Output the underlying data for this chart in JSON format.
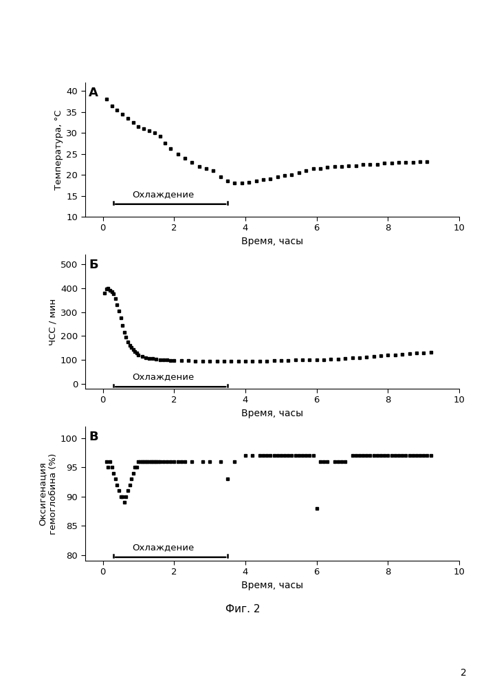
{
  "fig_label": "Фиг. 2",
  "page_number": "2",
  "background_color": "#ffffff",
  "marker": "s",
  "marker_color": "black",
  "marker_size": 3.5,
  "panel_A": {
    "label": "A",
    "ylabel": "Температура, °C",
    "xlabel": "Время, часы",
    "ylim": [
      10,
      42
    ],
    "yticks": [
      10,
      15,
      20,
      25,
      30,
      35,
      40
    ],
    "xlim": [
      -0.5,
      10
    ],
    "xticks": [
      0,
      2,
      4,
      6,
      8,
      10
    ],
    "cooling_label": "Охлаждение",
    "cooling_x_start": 0.3,
    "cooling_x_end": 3.5,
    "cooling_y": 13.0,
    "x": [
      0.1,
      0.25,
      0.4,
      0.55,
      0.7,
      0.85,
      1.0,
      1.15,
      1.3,
      1.45,
      1.6,
      1.75,
      1.9,
      2.1,
      2.3,
      2.5,
      2.7,
      2.9,
      3.1,
      3.3,
      3.5,
      3.7,
      3.9,
      4.1,
      4.3,
      4.5,
      4.7,
      4.9,
      5.1,
      5.3,
      5.5,
      5.7,
      5.9,
      6.1,
      6.3,
      6.5,
      6.7,
      6.9,
      7.1,
      7.3,
      7.5,
      7.7,
      7.9,
      8.1,
      8.3,
      8.5,
      8.7,
      8.9,
      9.1
    ],
    "y": [
      38.0,
      36.5,
      35.5,
      34.5,
      33.5,
      32.5,
      31.5,
      31.0,
      30.5,
      30.0,
      29.2,
      27.5,
      26.2,
      25.0,
      24.0,
      23.0,
      22.0,
      21.5,
      21.0,
      19.5,
      18.5,
      18.0,
      18.0,
      18.2,
      18.5,
      18.8,
      19.0,
      19.5,
      19.8,
      20.0,
      20.5,
      21.0,
      21.5,
      21.5,
      21.8,
      22.0,
      22.0,
      22.2,
      22.2,
      22.5,
      22.5,
      22.5,
      22.8,
      22.8,
      23.0,
      23.0,
      23.0,
      23.2,
      23.2
    ]
  },
  "panel_B": {
    "label": "Б",
    "ylabel": "ЧСС / мин",
    "xlabel": "Время, часы",
    "ylim": [
      -20,
      540
    ],
    "yticks": [
      0,
      100,
      200,
      300,
      400,
      500
    ],
    "xlim": [
      -0.5,
      10
    ],
    "xticks": [
      0,
      2,
      4,
      6,
      8,
      10
    ],
    "cooling_label": "Охлаждение",
    "cooling_x_start": 0.3,
    "cooling_x_end": 3.5,
    "cooling_y": -12,
    "x": [
      0.05,
      0.1,
      0.15,
      0.2,
      0.25,
      0.3,
      0.35,
      0.4,
      0.45,
      0.5,
      0.55,
      0.6,
      0.65,
      0.7,
      0.75,
      0.8,
      0.85,
      0.9,
      0.95,
      1.0,
      1.1,
      1.2,
      1.3,
      1.4,
      1.5,
      1.6,
      1.7,
      1.8,
      1.9,
      2.0,
      2.2,
      2.4,
      2.6,
      2.8,
      3.0,
      3.2,
      3.4,
      3.6,
      3.8,
      4.0,
      4.2,
      4.4,
      4.6,
      4.8,
      5.0,
      5.2,
      5.4,
      5.6,
      5.8,
      6.0,
      6.2,
      6.4,
      6.6,
      6.8,
      7.0,
      7.2,
      7.4,
      7.6,
      7.8,
      8.0,
      8.2,
      8.4,
      8.6,
      8.8,
      9.0,
      9.2
    ],
    "y": [
      380,
      395,
      400,
      390,
      385,
      375,
      355,
      330,
      305,
      275,
      245,
      215,
      195,
      175,
      162,
      152,
      143,
      135,
      128,
      122,
      115,
      110,
      107,
      105,
      103,
      102,
      100,
      100,
      99,
      98,
      97,
      97,
      96,
      96,
      95,
      95,
      95,
      95,
      95,
      95,
      95,
      95,
      96,
      97,
      98,
      99,
      100,
      100,
      100,
      101,
      102,
      103,
      104,
      106,
      108,
      110,
      112,
      115,
      118,
      120,
      122,
      124,
      126,
      128,
      130,
      132
    ]
  },
  "panel_C": {
    "label": "В",
    "ylabel": "Оксигенация\nгемоглобина (%)",
    "xlabel": "Время, часы",
    "ylim": [
      79,
      102
    ],
    "yticks": [
      80,
      85,
      90,
      95,
      100
    ],
    "xlim": [
      -0.5,
      10
    ],
    "xticks": [
      0,
      2,
      4,
      6,
      8,
      10
    ],
    "cooling_label": "Охлаждение",
    "cooling_x_start": 0.3,
    "cooling_x_end": 3.5,
    "cooling_y": 79.6,
    "x": [
      0.1,
      0.15,
      0.2,
      0.25,
      0.3,
      0.35,
      0.4,
      0.45,
      0.5,
      0.55,
      0.6,
      0.65,
      0.7,
      0.75,
      0.8,
      0.85,
      0.9,
      0.95,
      1.0,
      1.05,
      1.1,
      1.15,
      1.2,
      1.25,
      1.3,
      1.35,
      1.4,
      1.45,
      1.5,
      1.55,
      1.6,
      1.7,
      1.8,
      1.9,
      2.0,
      2.1,
      2.2,
      2.3,
      2.5,
      2.8,
      3.0,
      3.3,
      3.5,
      3.7,
      4.0,
      4.2,
      4.4,
      4.5,
      4.6,
      4.7,
      4.8,
      4.9,
      5.0,
      5.1,
      5.2,
      5.3,
      5.4,
      5.5,
      5.6,
      5.7,
      5.8,
      5.9,
      6.0,
      6.1,
      6.2,
      6.3,
      6.5,
      6.6,
      6.7,
      6.8,
      7.0,
      7.1,
      7.2,
      7.3,
      7.4,
      7.5,
      7.6,
      7.7,
      7.8,
      7.9,
      8.0,
      8.1,
      8.2,
      8.3,
      8.4,
      8.5,
      8.6,
      8.7,
      8.8,
      8.9,
      9.0,
      9.1,
      9.2
    ],
    "y": [
      96,
      95,
      96,
      95,
      94,
      93,
      92,
      91,
      90,
      90,
      89,
      90,
      91,
      92,
      93,
      94,
      95,
      95,
      96,
      96,
      96,
      96,
      96,
      96,
      96,
      96,
      96,
      96,
      96,
      96,
      96,
      96,
      96,
      96,
      96,
      96,
      96,
      96,
      96,
      96,
      96,
      96,
      93,
      96,
      97,
      97,
      97,
      97,
      97,
      97,
      97,
      97,
      97,
      97,
      97,
      97,
      97,
      97,
      97,
      97,
      97,
      97,
      88,
      96,
      96,
      96,
      96,
      96,
      96,
      96,
      97,
      97,
      97,
      97,
      97,
      97,
      97,
      97,
      97,
      97,
      97,
      97,
      97,
      97,
      97,
      97,
      97,
      97,
      97,
      97,
      97,
      97,
      97
    ]
  }
}
